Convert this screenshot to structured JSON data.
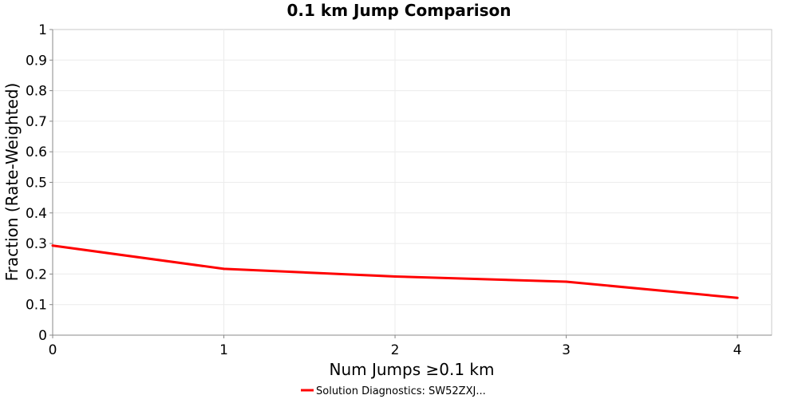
{
  "chart_data": {
    "type": "line",
    "title": "0.1 km Jump Comparison",
    "xlabel": "Num Jumps ≥0.1 km",
    "ylabel": "Fraction (Rate-Weighted)",
    "xlim": [
      0,
      4.2
    ],
    "ylim": [
      0,
      1
    ],
    "x_ticks": [
      "0",
      "1",
      "2",
      "3",
      "4"
    ],
    "y_ticks": [
      "0",
      "0.1",
      "0.2",
      "0.3",
      "0.4",
      "0.5",
      "0.6",
      "0.7",
      "0.8",
      "0.9",
      "1"
    ],
    "grid": true,
    "legend_position": "bottom-center",
    "series": [
      {
        "name": "Solution Diagnostics: SW52ZXJ...",
        "color": "#ff0000",
        "x": [
          0,
          1,
          2,
          3,
          4
        ],
        "y": [
          0.293,
          0.217,
          0.192,
          0.175,
          0.122
        ]
      }
    ]
  }
}
